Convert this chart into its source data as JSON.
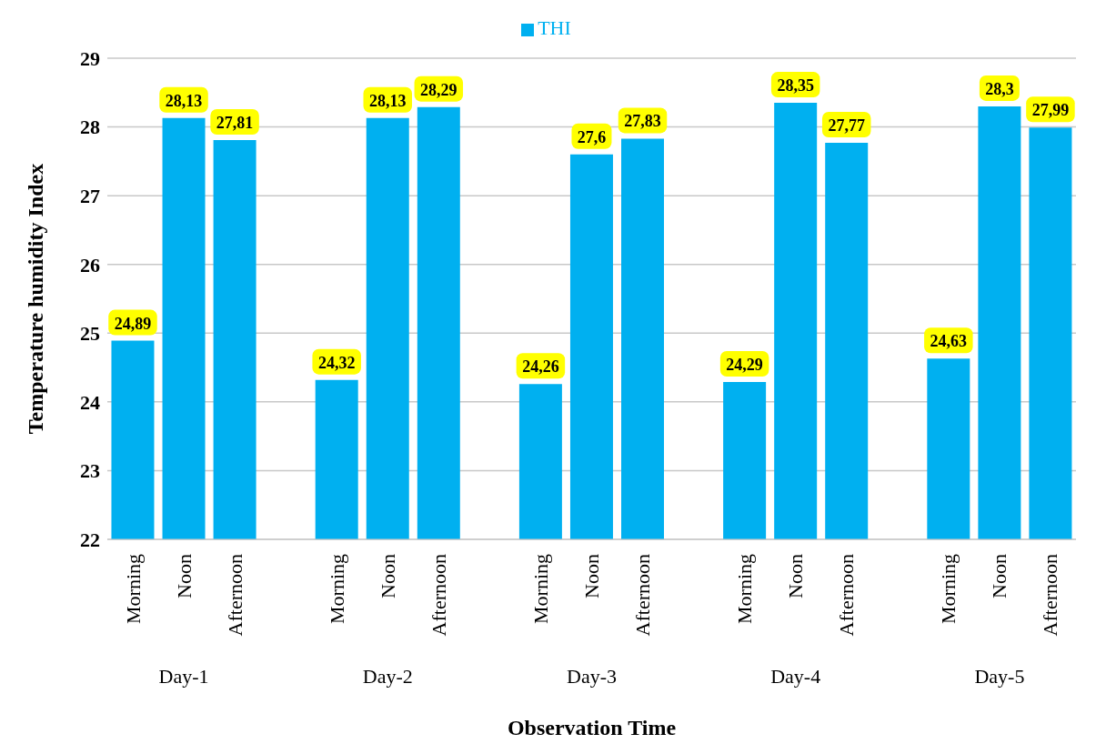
{
  "chart_data": {
    "type": "bar",
    "xlabel": "Observation Time",
    "ylabel": "Temperature humidity Index",
    "categories": [
      "Morning",
      "Noon",
      "Afternoon",
      null,
      "Morning",
      "Noon",
      "Afternoon",
      null,
      "Morning",
      "Noon",
      "Afternoon",
      null,
      "Morning",
      "Noon",
      "Afternoon",
      null,
      "Morning",
      "Noon",
      "Afternoon"
    ],
    "series": [
      {
        "name": "THI",
        "color": "#00b0f0",
        "values": [
          24.89,
          28.13,
          27.81,
          null,
          24.32,
          28.13,
          28.29,
          null,
          24.26,
          27.6,
          27.83,
          null,
          24.29,
          28.35,
          27.77,
          null,
          24.63,
          28.3,
          27.99
        ],
        "value_labels": [
          "24,89",
          "28,13",
          "27,81",
          null,
          "24,32",
          "28,13",
          "28,29",
          null,
          "24,26",
          "27,6",
          "27,83",
          null,
          "24,29",
          "28,35",
          "27,77",
          null,
          "24,63",
          "28,3",
          "27,99"
        ]
      }
    ],
    "annotations": [
      "Day-1",
      "Day-2",
      "Day-3",
      "Day-4",
      "Day-5"
    ],
    "ylim": [
      22,
      29
    ],
    "yticks": [
      22,
      23,
      24,
      25,
      26,
      27,
      28,
      29
    ],
    "grid": "y",
    "legend": "top"
  }
}
